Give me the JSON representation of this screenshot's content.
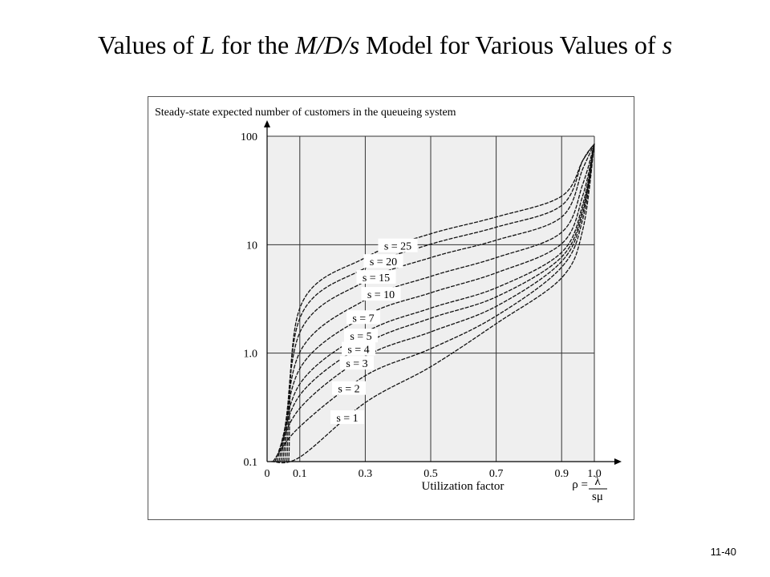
{
  "slide": {
    "title_parts": [
      "Values of ",
      "L",
      " for the ",
      "M/D/s",
      " Model for Various Values of ",
      "s"
    ],
    "page_number": "11-40"
  },
  "chart_data": {
    "type": "line",
    "title": "Steady-state expected number of customers in the queueing system",
    "xlabel": "Utilization factor",
    "ylabel": "Steady-state expected number of customers in the queueing system",
    "x_scale": "linear",
    "y_scale": "log",
    "xlim": [
      0,
      1.0
    ],
    "ylim": [
      0.1,
      100
    ],
    "grid": true,
    "x_ticks": [
      "0",
      "0.1",
      "0.3",
      "0.5",
      "0.7",
      "0.9",
      "1.0"
    ],
    "y_ticks": [
      "0.1",
      "1.0",
      "10",
      "100"
    ],
    "rho_formula": {
      "lhs": "ρ =",
      "numerator": "λ",
      "denominator": "sμ"
    },
    "x": [
      0.1,
      0.3,
      0.5,
      0.7,
      0.9
    ],
    "series": [
      {
        "name": "s = 1",
        "values": [
          0.11,
          0.35,
          0.75,
          1.87,
          4.95
        ]
      },
      {
        "name": "s = 2",
        "values": [
          0.21,
          0.62,
          1.1,
          2.2,
          6.2
        ]
      },
      {
        "name": "s = 3",
        "values": [
          0.31,
          0.93,
          1.57,
          2.7,
          7.0
        ]
      },
      {
        "name": "s = 4",
        "values": [
          0.41,
          1.22,
          2.1,
          3.3,
          7.7
        ]
      },
      {
        "name": "s = 5",
        "values": [
          0.52,
          1.55,
          2.6,
          4.0,
          8.5
        ]
      },
      {
        "name": "s = 7",
        "values": [
          0.72,
          2.2,
          3.6,
          5.5,
          10.2
        ]
      },
      {
        "name": "s = 10",
        "values": [
          1.02,
          3.1,
          5.1,
          7.6,
          13.0
        ]
      },
      {
        "name": "s = 15",
        "values": [
          1.55,
          4.6,
          7.6,
          11.0,
          18.0
        ]
      },
      {
        "name": "s = 20",
        "values": [
          2.1,
          6.1,
          10.1,
          14.5,
          23.0
        ]
      },
      {
        "name": "s = 25",
        "values": [
          2.6,
          7.6,
          12.6,
          18.0,
          28.0
        ]
      }
    ]
  }
}
